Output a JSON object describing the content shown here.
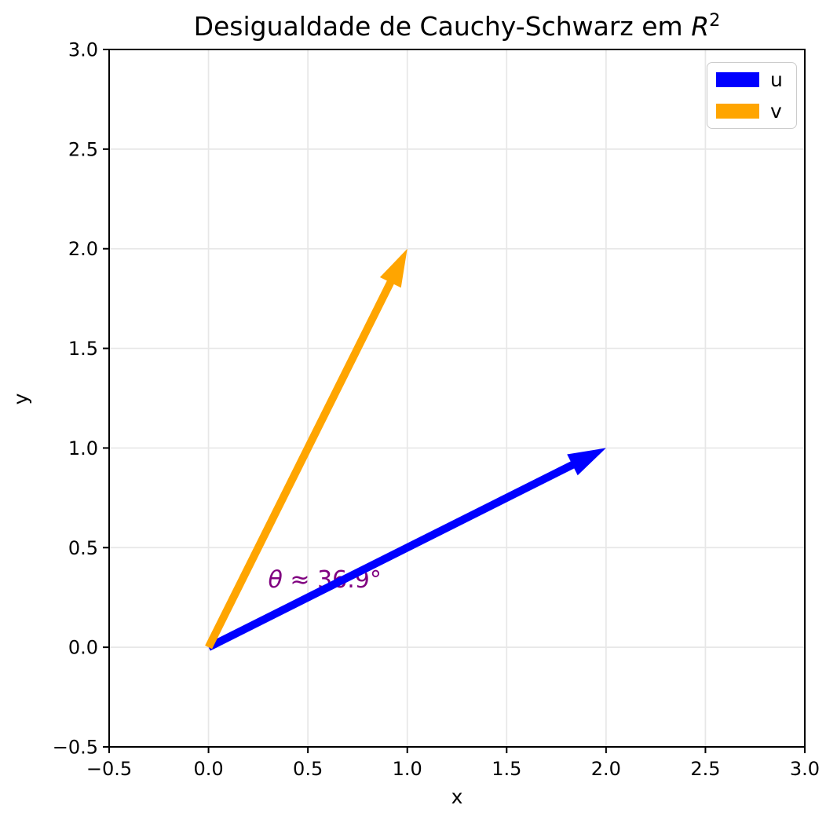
{
  "chart_data": {
    "type": "quiver",
    "title": {
      "prefix": "Desigualdade de Cauchy-Schwarz em ",
      "math": "R",
      "sup": "2"
    },
    "xlabel": "x",
    "ylabel": "y",
    "xlim": [
      -0.5,
      3.0
    ],
    "ylim": [
      -0.5,
      3.0
    ],
    "xtick_values": [
      -0.5,
      0.0,
      0.5,
      1.0,
      1.5,
      2.0,
      2.5,
      3.0
    ],
    "xtick_labels": [
      "−0.5",
      "0.0",
      "0.5",
      "1.0",
      "1.5",
      "2.0",
      "2.5",
      "3.0"
    ],
    "ytick_values": [
      -0.5,
      0.0,
      0.5,
      1.0,
      1.5,
      2.0,
      2.5,
      3.0
    ],
    "ytick_labels": [
      "−0.5",
      "0.0",
      "0.5",
      "1.0",
      "1.5",
      "2.0",
      "2.5",
      "3.0"
    ],
    "grid": true,
    "colors": {
      "grid": "#e7e7e7",
      "spine": "#000000",
      "background": "#ffffff",
      "tick_label": "#000000"
    },
    "vectors": [
      {
        "name": "u",
        "origin": [
          0,
          0
        ],
        "components": [
          2,
          1
        ],
        "color": "#0000ff"
      },
      {
        "name": "v",
        "origin": [
          0,
          0
        ],
        "components": [
          1,
          2
        ],
        "color": "#ffa500"
      }
    ],
    "annotation": {
      "symbol": "θ",
      "rest": " ≈ 36.9°",
      "angle_degrees": 36.9,
      "position": [
        0.3,
        0.3
      ],
      "color": "#800080"
    },
    "legend": {
      "position": "upper right",
      "items": [
        {
          "label": "u",
          "color": "#0000ff"
        },
        {
          "label": "v",
          "color": "#ffa500"
        }
      ]
    }
  }
}
